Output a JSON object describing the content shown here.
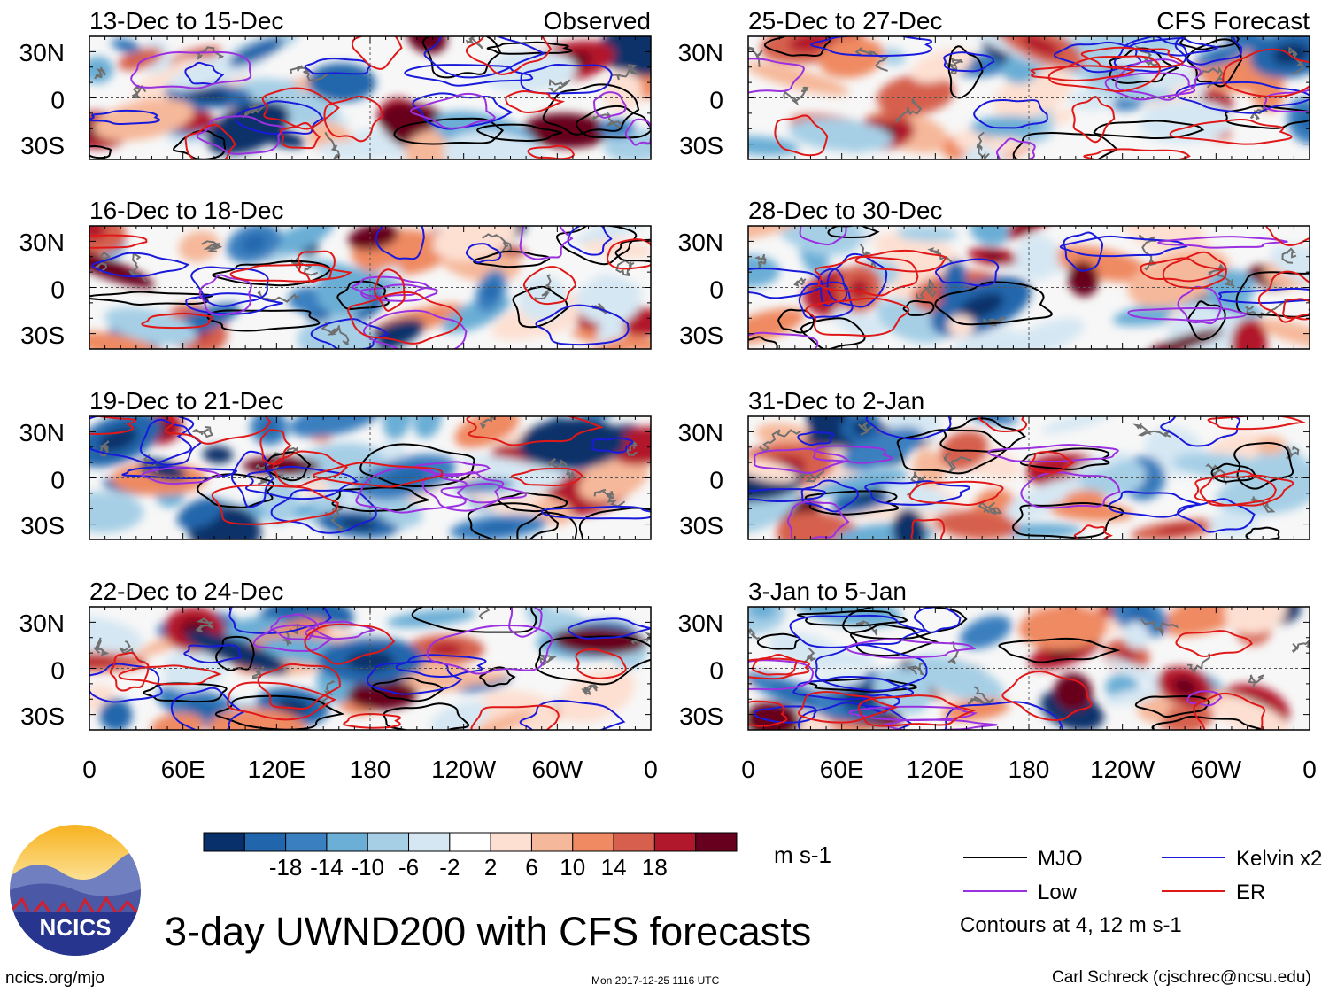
{
  "title": "3-day UWND200 with CFS forecasts",
  "website": "ncics.org/mjo",
  "timestamp": "Mon 2017-12-25 1116 UTC",
  "author": "Carl Schreck (cjschrec@ncsu.edu)",
  "logo": {
    "text": "NCICS"
  },
  "column_labels": {
    "left": "Observed",
    "right": "CFS Forecast"
  },
  "lat_labels": [
    "30N",
    "0",
    "30S"
  ],
  "lon_labels": [
    "0",
    "60E",
    "120E",
    "180",
    "120W",
    "60W",
    "0"
  ],
  "colors": {
    "fill_scale": [
      "#08306b",
      "#2166ac",
      "#3a7fbf",
      "#6baed6",
      "#a6cfe6",
      "#d5e7f3",
      "#ffffff",
      "#fde0d2",
      "#f6b89a",
      "#ef8a62",
      "#d6604d",
      "#b2182b",
      "#67001f"
    ],
    "mjo": "#000000",
    "kelvin": "#1a1adb",
    "low": "#9b30e0",
    "er": "#e01818",
    "coast": "#707070"
  },
  "chart_data": {
    "type": "heatmap",
    "variable": "UWND200",
    "units": "m s-1",
    "colorbar_ticks": [
      -18,
      -14,
      -10,
      -6,
      -2,
      2,
      6,
      10,
      14,
      18
    ],
    "contours_note": "Contours at 4, 12 m s-1",
    "legend": [
      {
        "name": "MJO",
        "color": "#000000"
      },
      {
        "name": "Kelvin x2",
        "color": "#1a1adb"
      },
      {
        "name": "Low",
        "color": "#9b30e0"
      },
      {
        "name": "ER",
        "color": "#e01818"
      }
    ],
    "x_axis": {
      "range_deg": [
        0,
        360
      ],
      "ticks": [
        "0",
        "60E",
        "120E",
        "180",
        "120W",
        "60W",
        "0"
      ]
    },
    "y_axis": {
      "range_deg": [
        -40,
        40
      ],
      "ticks": [
        "30N",
        "0",
        "30S"
      ]
    },
    "panels": [
      {
        "period": "13-Dec to 15-Dec",
        "type": "Observed"
      },
      {
        "period": "16-Dec to 18-Dec",
        "type": "Observed"
      },
      {
        "period": "19-Dec to 21-Dec",
        "type": "Observed"
      },
      {
        "period": "22-Dec to 24-Dec",
        "type": "Observed"
      },
      {
        "period": "25-Dec to 27-Dec",
        "type": "CFS Forecast"
      },
      {
        "period": "28-Dec to 30-Dec",
        "type": "CFS Forecast"
      },
      {
        "period": "31-Dec to 2-Jan",
        "type": "CFS Forecast"
      },
      {
        "period": "3-Jan to 5-Jan",
        "type": "CFS Forecast"
      }
    ]
  }
}
